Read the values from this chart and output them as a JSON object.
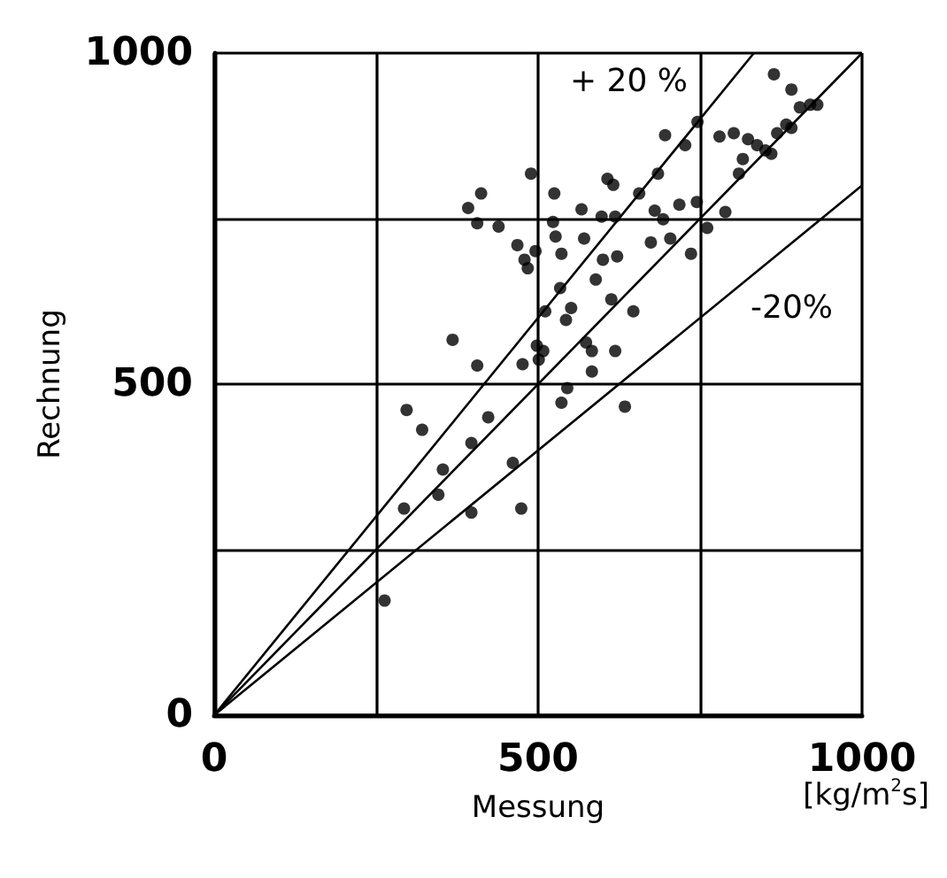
{
  "chart_data": {
    "type": "scatter",
    "xlabel": "Messung",
    "ylabel": "Rechnung",
    "annotations": [
      "+ 20 %",
      "-20%",
      "[kg/m$^{2}$s]"
    ],
    "xlim": [
      0,
      1000
    ],
    "ylim": [
      0,
      1000
    ],
    "xticks": [
      0,
      {
        "value": 250,
        "label": null
      },
      500,
      {
        "value": 750,
        "label": null
      },
      1000
    ],
    "yticks": [
      0,
      {
        "value": 250,
        "label": null
      },
      500,
      {
        "value": 750,
        "label": null
      },
      1000
    ],
    "grid": true,
    "series": [
      {
        "marker": "circle",
        "color": "#000000",
        "x": [
          263,
          293,
          297,
          321,
          346,
          353,
          368,
          397,
          397,
          406,
          423,
          392,
          406,
          412,
          439,
          461,
          468,
          474,
          476,
          479,
          484,
          489,
          496,
          498,
          501,
          508,
          511,
          525,
          523,
          527,
          534,
          536,
          536,
          543,
          545,
          551,
          567,
          571,
          574,
          583,
          583,
          589,
          598,
          600,
          607,
          616,
          619,
          619,
          613,
          622,
          634,
          647,
          656,
          674,
          680,
          685,
          693,
          696,
          704,
          718,
          727,
          736,
          745,
          746,
          761,
          780,
          789,
          802,
          810,
          816,
          824,
          838,
          851,
          860,
          864,
          869,
          883,
          891,
          891,
          904,
          920,
          931
        ],
        "values": [
          173,
          312,
          461,
          431,
          333,
          371,
          567,
          306,
          411,
          528,
          450,
          766,
          743,
          788,
          738,
          381,
          710,
          312,
          530,
          688,
          675,
          818,
          701,
          558,
          537,
          550,
          610,
          788,
          745,
          723,
          645,
          697,
          472,
          597,
          494,
          615,
          764,
          720,
          563,
          550,
          519,
          658,
          753,
          688,
          810,
          801,
          550,
          753,
          628,
          693,
          466,
          610,
          788,
          714,
          762,
          818,
          749,
          876,
          720,
          771,
          861,
          697,
          775,
          896,
          736,
          874,
          760,
          879,
          818,
          840,
          870,
          861,
          853,
          848,
          968,
          879,
          892,
          945,
          887,
          918,
          922,
          922
        ]
      },
      {
        "type": "line",
        "marker": "none",
        "color": "#000000",
        "x": [
          0,
          1000
        ],
        "values": [
          0,
          1000
        ]
      },
      {
        "type": "line",
        "marker": "none",
        "color": "#000000",
        "x": [
          0,
          833
        ],
        "values": [
          0,
          1000
        ]
      },
      {
        "type": "line",
        "marker": "none",
        "color": "#000000",
        "x": [
          0,
          1000
        ],
        "values": [
          0,
          800
        ]
      }
    ]
  }
}
